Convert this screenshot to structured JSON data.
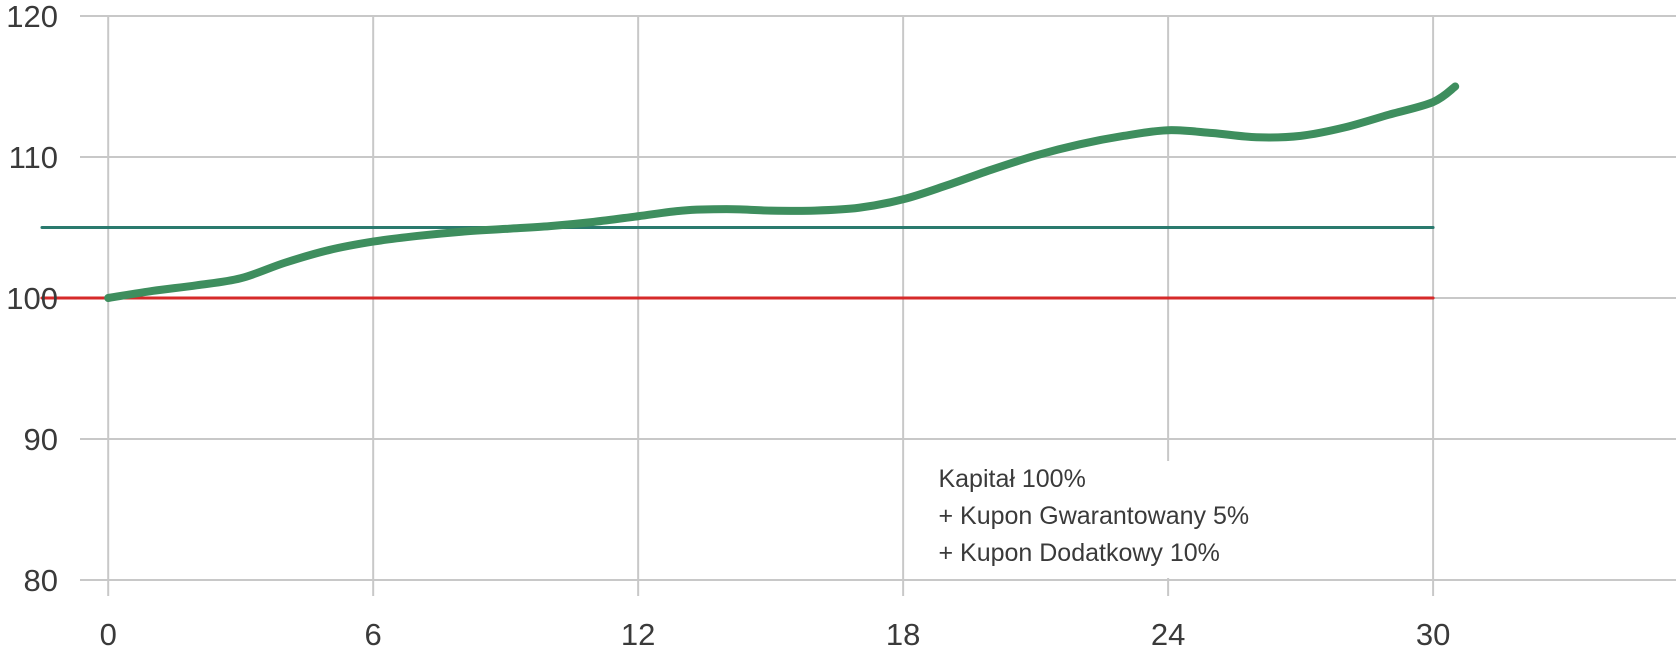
{
  "chart_data": {
    "type": "line",
    "title": "",
    "xlabel": "",
    "ylabel": "",
    "xlim": [
      -2.45,
      35.5
    ],
    "ylim": [
      80,
      120
    ],
    "x_ticks": [
      0,
      6,
      12,
      18,
      24,
      30
    ],
    "y_ticks": [
      80,
      90,
      100,
      110,
      120
    ],
    "grid": true,
    "series": [
      {
        "color": "#3e8e5e",
        "x": [
          0,
          1,
          2,
          3,
          4,
          5,
          6,
          7,
          8,
          9,
          10,
          11,
          12,
          13,
          14,
          15,
          16,
          17,
          18,
          19,
          20,
          21,
          22,
          23,
          24,
          25,
          26,
          27,
          28,
          29,
          30,
          30.5
        ],
        "y": [
          100.0,
          100.5,
          100.9,
          101.4,
          102.5,
          103.4,
          104.0,
          104.4,
          104.7,
          104.9,
          105.1,
          105.4,
          105.8,
          106.2,
          106.3,
          106.2,
          106.2,
          106.4,
          107.0,
          108.0,
          109.1,
          110.1,
          110.9,
          111.5,
          111.9,
          111.7,
          111.4,
          111.5,
          112.1,
          113.0,
          113.9,
          115.0
        ]
      },
      {
        "color": "#2a7a6e",
        "x": [
          -1.5,
          30
        ],
        "y": [
          105,
          105
        ]
      },
      {
        "color": "#d62a2a",
        "x": [
          -1.5,
          30
        ],
        "y": [
          100,
          100
        ]
      }
    ],
    "annotations": [
      "Kapitał 100%",
      "+ Kupon Gwarantowany 5%",
      "+ Kupon Dodatkowy 10%"
    ],
    "annotation_anchor": [
      18.8,
      90
    ],
    "gridline_color": "#c8c8c8"
  }
}
